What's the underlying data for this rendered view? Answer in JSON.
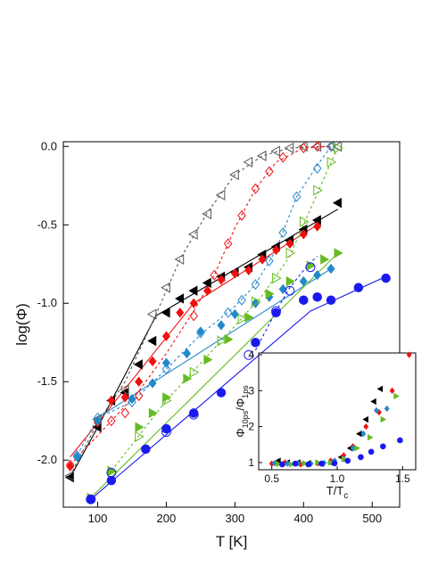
{
  "chart_data": [
    {
      "type": "scatter",
      "xlabel": "T [K]",
      "ylabel": "log(Φ)",
      "xlim": [
        50,
        540
      ],
      "ylim": [
        -2.3,
        0.03
      ],
      "xticks": [
        100,
        200,
        300,
        400,
        500
      ],
      "yticks": [
        0.0,
        -0.5,
        -1.0,
        -1.5,
        -2.0
      ],
      "xtick_labels": [
        "100",
        "200",
        "300",
        "400",
        "500"
      ],
      "ytick_labels": [
        "0.0",
        "-0.5",
        "-1.0",
        "-1.5",
        "-2.0"
      ],
      "series": [
        {
          "marker": "triangle-left",
          "color": "#000000",
          "filled": true,
          "x": [
            60,
            100,
            120,
            140,
            160,
            180,
            200,
            220,
            240,
            260,
            280,
            300,
            320,
            340,
            360,
            380,
            400,
            420,
            450
          ],
          "y": [
            -2.11,
            -1.79,
            -1.62,
            -1.57,
            -1.39,
            -1.24,
            -1.06,
            -0.97,
            -0.92,
            -0.87,
            -0.83,
            -0.8,
            -0.77,
            -0.69,
            -0.64,
            -0.6,
            -0.53,
            -0.47,
            -0.36
          ],
          "fit": {
            "x": [
              60,
              100,
              185,
              450
            ],
            "y": [
              -2.11,
              -1.79,
              -1.08,
              -0.4
            ]
          }
        },
        {
          "marker": "diamond",
          "color": "#ee1111",
          "filled": true,
          "x": [
            60,
            100,
            120,
            140,
            160,
            180,
            200,
            220,
            240,
            260,
            280,
            300,
            320,
            340,
            360,
            380,
            400,
            420
          ],
          "y": [
            -2.04,
            -1.76,
            -1.62,
            -1.6,
            -1.5,
            -1.37,
            -1.21,
            -1.06,
            -1.0,
            -0.92,
            -0.85,
            -0.81,
            -0.79,
            -0.72,
            -0.66,
            -0.62,
            -0.56,
            -0.51
          ],
          "fit": {
            "x": [
              60,
              130,
              240,
              420
            ],
            "y": [
              -1.98,
              -1.6,
              -1.0,
              -0.5
            ]
          }
        },
        {
          "marker": "diamond",
          "color": "#2288cc",
          "filled": true,
          "x": [
            70,
            100,
            150,
            180,
            200,
            230,
            250,
            280,
            300,
            330,
            350,
            370,
            400,
            420,
            440
          ],
          "y": [
            -1.98,
            -1.75,
            -1.61,
            -1.51,
            -1.38,
            -1.32,
            -1.18,
            -1.14,
            -1.07,
            -1.0,
            -0.96,
            -0.91,
            -0.86,
            -0.82,
            -0.78
          ],
          "fit": {
            "x": [
              100,
              440
            ],
            "y": [
              -1.73,
              -0.78
            ]
          }
        },
        {
          "marker": "triangle-right",
          "color": "#66bb22",
          "filled": true,
          "x": [
            90,
            120,
            160,
            180,
            200,
            230,
            260,
            290,
            320,
            350,
            380,
            410,
            430,
            450
          ],
          "y": [
            -2.24,
            -2.07,
            -1.79,
            -1.7,
            -1.6,
            -1.48,
            -1.36,
            -1.23,
            -1.09,
            -0.94,
            -0.86,
            -0.76,
            -0.72,
            -0.68
          ],
          "fit": {
            "x": [
              90,
              450
            ],
            "y": [
              -2.24,
              -0.68
            ]
          }
        },
        {
          "marker": "circle",
          "color": "#1a1aee",
          "filled": true,
          "x": [
            90,
            120,
            170,
            200,
            240,
            280,
            330,
            360,
            400,
            420,
            440,
            480,
            520
          ],
          "y": [
            -2.25,
            -2.13,
            -1.93,
            -1.8,
            -1.7,
            -1.57,
            -1.25,
            -1.06,
            -0.98,
            -0.96,
            -0.98,
            -0.9,
            -0.84
          ],
          "fit": {
            "x": [
              90,
              410,
              520
            ],
            "y": [
              -2.25,
              -1.05,
              -0.83
            ]
          }
        },
        {
          "marker": "triangle-left",
          "color": "#555555",
          "filled": false,
          "dashed": true,
          "x": [
            60,
            100,
            140,
            180,
            200,
            220,
            240,
            260,
            280,
            300,
            320,
            340,
            360,
            380,
            400,
            420,
            440,
            450
          ],
          "y": [
            -2.1,
            -1.74,
            -1.55,
            -1.07,
            -0.9,
            -0.72,
            -0.56,
            -0.43,
            -0.31,
            -0.18,
            -0.1,
            -0.06,
            -0.03,
            -0.01,
            0.0,
            0.0,
            0.0,
            0.0
          ],
          "fit": {
            "x": [
              60,
              100,
              140,
              180,
              220,
              260,
              300,
              340,
              380,
              420,
              450
            ],
            "y": [
              -2.1,
              -1.76,
              -1.5,
              -1.12,
              -0.72,
              -0.42,
              -0.18,
              -0.06,
              -0.01,
              0.0,
              0.0
            ]
          }
        },
        {
          "marker": "diamond",
          "color": "#ee1111",
          "filled": false,
          "dashed": true,
          "x": [
            60,
            120,
            140,
            160,
            240,
            270,
            290,
            310,
            330,
            350,
            370,
            400,
            420,
            440
          ],
          "y": [
            -2.03,
            -1.75,
            -1.7,
            -1.59,
            -1.08,
            -0.82,
            -0.62,
            -0.44,
            -0.27,
            -0.16,
            -0.07,
            -0.01,
            0.0,
            0.0
          ],
          "fit": {
            "x": [
              60,
              120,
              160,
              200,
              240,
              270,
              300,
              330,
              360,
              400,
              440
            ],
            "y": [
              -2.03,
              -1.75,
              -1.56,
              -1.32,
              -1.05,
              -0.82,
              -0.52,
              -0.27,
              -0.1,
              -0.01,
              0.0
            ]
          }
        },
        {
          "marker": "diamond",
          "color": "#2288cc",
          "filled": false,
          "dashed": true,
          "x": [
            70,
            100,
            150,
            200,
            250,
            290,
            310,
            330,
            350,
            370,
            390,
            420,
            440
          ],
          "y": [
            -1.97,
            -1.73,
            -1.63,
            -1.42,
            -1.19,
            -1.06,
            -0.98,
            -0.88,
            -0.73,
            -0.55,
            -0.32,
            -0.14,
            0.0
          ],
          "fit": {
            "x": [
              70,
              100,
              150,
              200,
              250,
              300,
              330,
              360,
              390,
              420,
              440
            ],
            "y": [
              -1.97,
              -1.73,
              -1.63,
              -1.42,
              -1.2,
              -1.02,
              -0.88,
              -0.66,
              -0.32,
              -0.12,
              0.0
            ]
          }
        },
        {
          "marker": "triangle-right",
          "color": "#66bb22",
          "filled": false,
          "dashed": true,
          "x": [
            120,
            160,
            200,
            240,
            280,
            310,
            330,
            360,
            380,
            400,
            420,
            440,
            450
          ],
          "y": [
            -2.07,
            -1.85,
            -1.62,
            -1.44,
            -1.24,
            -1.1,
            -0.99,
            -0.84,
            -0.68,
            -0.48,
            -0.28,
            -0.1,
            -0.01
          ],
          "fit": {
            "x": [
              120,
              200,
              280,
              340,
              380,
              410,
              440,
              450
            ],
            "y": [
              -2.07,
              -1.62,
              -1.24,
              -0.95,
              -0.7,
              -0.4,
              -0.1,
              -0.01
            ]
          }
        },
        {
          "marker": "circle",
          "color": "#1a1aee",
          "filled": false,
          "dashed": true,
          "x": [
            90,
            120,
            200,
            240,
            320,
            360,
            380,
            410
          ],
          "y": [
            -2.25,
            -2.08,
            -1.82,
            -1.71,
            -1.33,
            -1.05,
            -0.92,
            -0.77
          ],
          "fit": {
            "x": [
              330,
              360,
              380,
              400,
              410,
              420
            ],
            "y": [
              -1.3,
              -1.05,
              -0.9,
              -0.79,
              -0.74,
              -0.7
            ]
          }
        }
      ]
    },
    {
      "type": "scatter",
      "inset": true,
      "xlabel": "T/T",
      "xlabel_sub": "c",
      "ylabel": "Φ",
      "ylabel_sub1": "10ps",
      "ylabel_mid": "/Φ",
      "ylabel_sub2": "1ps",
      "xlim": [
        0.4,
        1.6
      ],
      "ylim": [
        0.8,
        4.05
      ],
      "xticks": [
        0.5,
        1.0,
        1.5
      ],
      "yticks": [
        1,
        2,
        3,
        4
      ],
      "xtick_labels": [
        "0.5",
        "1.0",
        "1.5"
      ],
      "ytick_labels": [
        "1",
        "2",
        "3",
        "4"
      ],
      "series": [
        {
          "marker": "triangle-left",
          "color": "#000000",
          "x": [
            0.55,
            0.62,
            0.7,
            0.78,
            0.88,
            0.95,
            1.03,
            1.1,
            1.17,
            1.22,
            1.28,
            1.33
          ],
          "y": [
            1.05,
            1.0,
            1.0,
            0.98,
            0.97,
            1.0,
            1.15,
            1.4,
            1.8,
            2.2,
            2.7,
            3.05
          ]
        },
        {
          "marker": "diamond",
          "color": "#ee1111",
          "x": [
            0.5,
            0.6,
            0.72,
            0.85,
            0.95,
            1.05,
            1.12,
            1.22,
            1.32,
            1.42,
            1.55
          ],
          "y": [
            0.97,
            1.0,
            0.95,
            0.98,
            1.05,
            1.2,
            1.45,
            2.0,
            2.4,
            3.0,
            4.0
          ]
        },
        {
          "marker": "diamond",
          "color": "#2288cc",
          "x": [
            0.52,
            0.62,
            0.7,
            0.8,
            0.9,
            0.98,
            1.05,
            1.12,
            1.2,
            1.3,
            1.38
          ],
          "y": [
            0.98,
            0.97,
            0.98,
            0.97,
            0.99,
            1.05,
            1.1,
            1.4,
            1.8,
            2.45,
            2.5
          ]
        },
        {
          "marker": "triangle-right",
          "color": "#66bb22",
          "x": [
            0.55,
            0.65,
            0.75,
            0.85,
            0.95,
            1.05,
            1.15,
            1.25,
            1.35,
            1.45
          ],
          "y": [
            0.96,
            0.95,
            0.98,
            1.0,
            1.0,
            1.1,
            1.4,
            1.7,
            2.2,
            2.85
          ]
        },
        {
          "marker": "circle",
          "color": "#1a1aee",
          "x": [
            0.58,
            0.68,
            0.78,
            0.88,
            0.98,
            1.08,
            1.18,
            1.26,
            1.35,
            1.48
          ],
          "y": [
            0.95,
            0.97,
            0.95,
            0.97,
            0.98,
            1.05,
            1.15,
            1.3,
            1.45,
            1.62
          ]
        }
      ]
    }
  ]
}
